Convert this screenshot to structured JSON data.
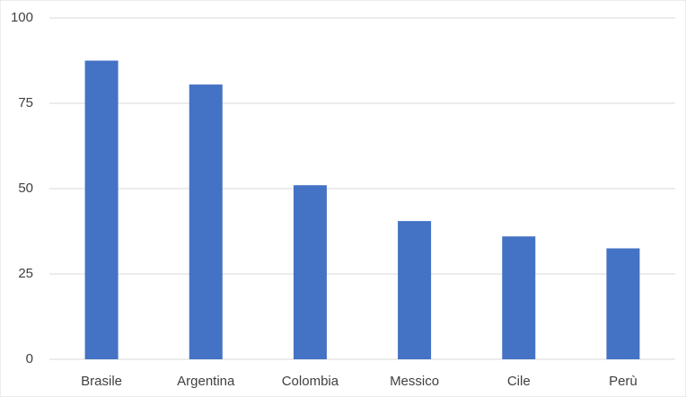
{
  "chart_data": {
    "type": "bar",
    "categories": [
      "Brasile",
      "Argentina",
      "Colombia",
      "Messico",
      "Cile",
      "Perù"
    ],
    "values": [
      87.5,
      80.5,
      51,
      40.5,
      36,
      32.5
    ],
    "color": "#4472c4",
    "ylim": [
      0,
      100
    ],
    "yticks": [
      0,
      25,
      50,
      75,
      100
    ],
    "grid": true
  }
}
